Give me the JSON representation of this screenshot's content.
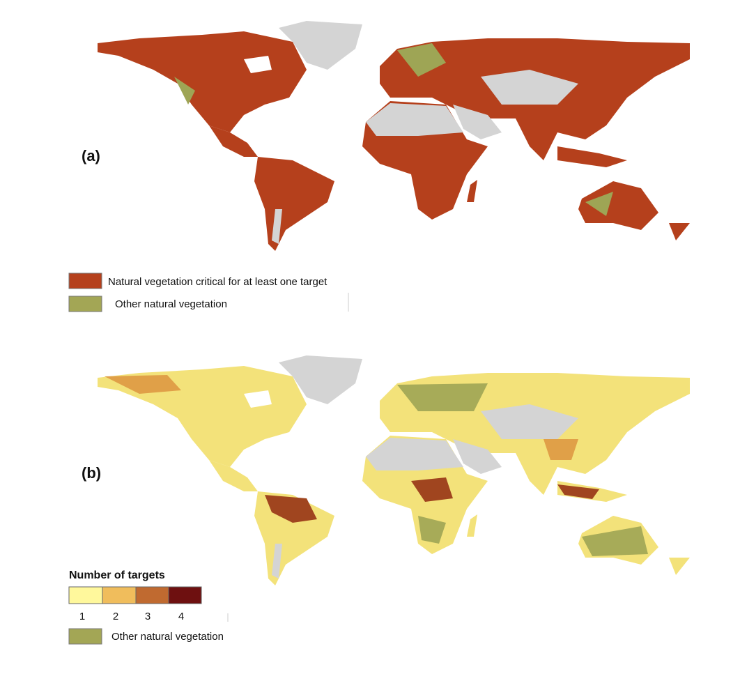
{
  "panels": [
    {
      "label": "(a)",
      "legend": {
        "items": [
          "Natural vegetation critical for at least one target",
          "Other natural vegetation"
        ]
      }
    },
    {
      "label": "(b)",
      "legend": {
        "title": "Number of targets",
        "scale": [
          1,
          2,
          3,
          4
        ],
        "other": "Other natural vegetation"
      }
    }
  ]
}
